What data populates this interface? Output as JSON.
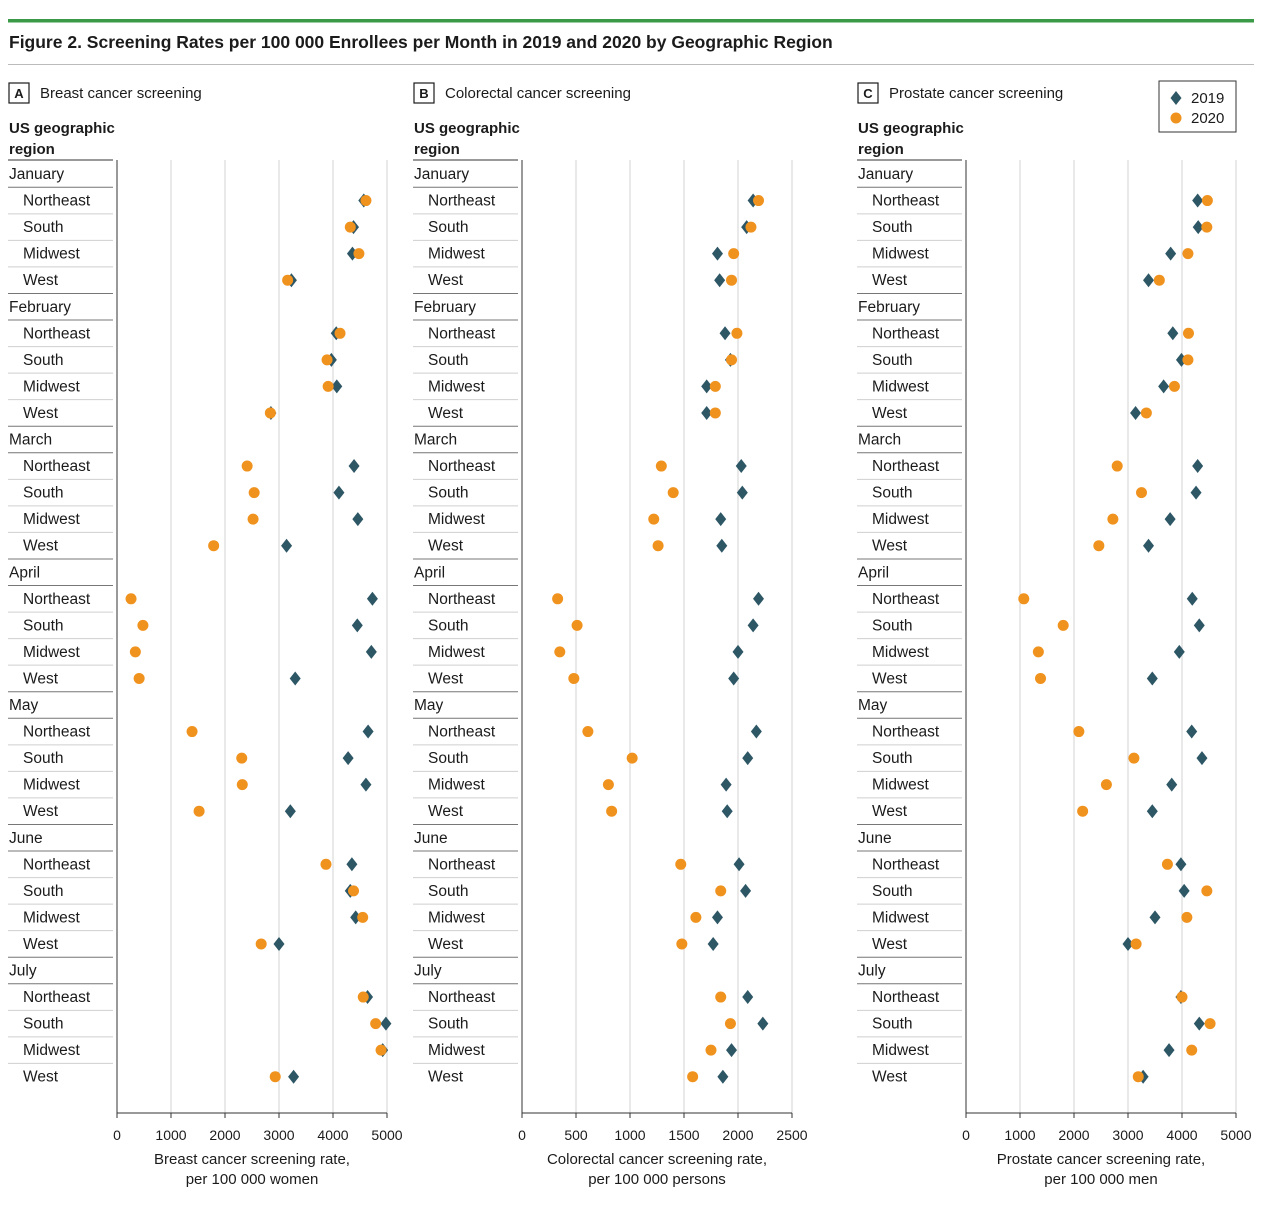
{
  "figure": {
    "title": "Figure 2. Screening Rates per 100 000 Enrollees per Month in 2019 and 2020 by Geographic Region",
    "accent_color": "#3a9a48"
  },
  "legend": {
    "placement": "top-right",
    "items": [
      {
        "label": "2019",
        "color": "#2e5766",
        "marker": "diamond"
      },
      {
        "label": "2020",
        "color": "#f0921e",
        "marker": "circle"
      }
    ]
  },
  "rows": [
    {
      "month": "January",
      "regions": [
        "Northeast",
        "South",
        "Midwest",
        "West"
      ]
    },
    {
      "month": "February",
      "regions": [
        "Northeast",
        "South",
        "Midwest",
        "West"
      ]
    },
    {
      "month": "March",
      "regions": [
        "Northeast",
        "South",
        "Midwest",
        "West"
      ]
    },
    {
      "month": "April",
      "regions": [
        "Northeast",
        "South",
        "Midwest",
        "West"
      ]
    },
    {
      "month": "May",
      "regions": [
        "Northeast",
        "South",
        "Midwest",
        "West"
      ]
    },
    {
      "month": "June",
      "regions": [
        "Northeast",
        "South",
        "Midwest",
        "West"
      ]
    },
    {
      "month": "July",
      "regions": [
        "Northeast",
        "South",
        "Midwest",
        "West"
      ]
    }
  ],
  "chart_data": [
    {
      "type": "scatter",
      "panel": "A",
      "title": "Breast cancer screening",
      "row_header": [
        "US geographic",
        "region"
      ],
      "xlabel": [
        "Breast cancer screening rate,",
        "per 100 000 women"
      ],
      "xlim": [
        0,
        5000
      ],
      "xticks": [
        0,
        1000,
        2000,
        3000,
        4000,
        5000
      ],
      "grid": true,
      "series": [
        {
          "name": "2019",
          "values": [
            4570,
            4380,
            4360,
            3230,
            4060,
            3970,
            4070,
            2850,
            4390,
            4110,
            4460,
            3140,
            4730,
            4450,
            4710,
            3300,
            4650,
            4280,
            4610,
            3210,
            4350,
            4320,
            4420,
            3000,
            4640,
            4980,
            4920,
            3270
          ]
        },
        {
          "name": "2020",
          "values": [
            4610,
            4320,
            4480,
            3160,
            4130,
            3890,
            3910,
            2840,
            2410,
            2540,
            2520,
            1790,
            260,
            480,
            340,
            410,
            1390,
            2310,
            2320,
            1520,
            3870,
            4380,
            4550,
            2670,
            4560,
            4790,
            4890,
            2930
          ]
        }
      ]
    },
    {
      "type": "scatter",
      "panel": "B",
      "title": "Colorectal cancer screening",
      "row_header": [
        "US geographic",
        "region"
      ],
      "xlabel": [
        "Colorectal cancer screening rate,",
        "per 100 000 persons"
      ],
      "xlim": [
        0,
        2500
      ],
      "xticks": [
        0,
        500,
        1000,
        1500,
        2000,
        2500
      ],
      "grid": true,
      "series": [
        {
          "name": "2019",
          "values": [
            2140,
            2080,
            1810,
            1830,
            1880,
            1930,
            1710,
            1710,
            2030,
            2040,
            1840,
            1850,
            2190,
            2140,
            2000,
            1960,
            2170,
            2090,
            1890,
            1900,
            2010,
            2070,
            1810,
            1770,
            2090,
            2230,
            1940,
            1860
          ]
        },
        {
          "name": "2020",
          "values": [
            2190,
            2120,
            1960,
            1940,
            1990,
            1940,
            1790,
            1790,
            1290,
            1400,
            1220,
            1260,
            330,
            510,
            350,
            480,
            610,
            1020,
            800,
            830,
            1470,
            1840,
            1610,
            1480,
            1840,
            1930,
            1750,
            1580
          ]
        }
      ]
    },
    {
      "type": "scatter",
      "panel": "C",
      "title": "Prostate cancer screening",
      "row_header": [
        "US geographic",
        "region"
      ],
      "xlabel": [
        "Prostate cancer screening rate,",
        "per 100 000 men"
      ],
      "xlim": [
        0,
        5000
      ],
      "xticks": [
        0,
        1000,
        2000,
        3000,
        4000,
        5000
      ],
      "grid": true,
      "series": [
        {
          "name": "2019",
          "values": [
            4290,
            4300,
            3790,
            3380,
            3830,
            3990,
            3660,
            3140,
            4290,
            4260,
            3780,
            3380,
            4190,
            4320,
            3950,
            3450,
            4180,
            4370,
            3810,
            3450,
            3980,
            4040,
            3500,
            3000,
            3980,
            4320,
            3760,
            3280
          ]
        },
        {
          "name": "2020",
          "values": [
            4470,
            4460,
            4110,
            3580,
            4120,
            4110,
            3860,
            3340,
            2800,
            3250,
            2720,
            2460,
            1070,
            1800,
            1340,
            1380,
            2090,
            3110,
            2600,
            2160,
            3730,
            4460,
            4090,
            3150,
            4000,
            4520,
            4180,
            3190
          ]
        }
      ]
    }
  ]
}
